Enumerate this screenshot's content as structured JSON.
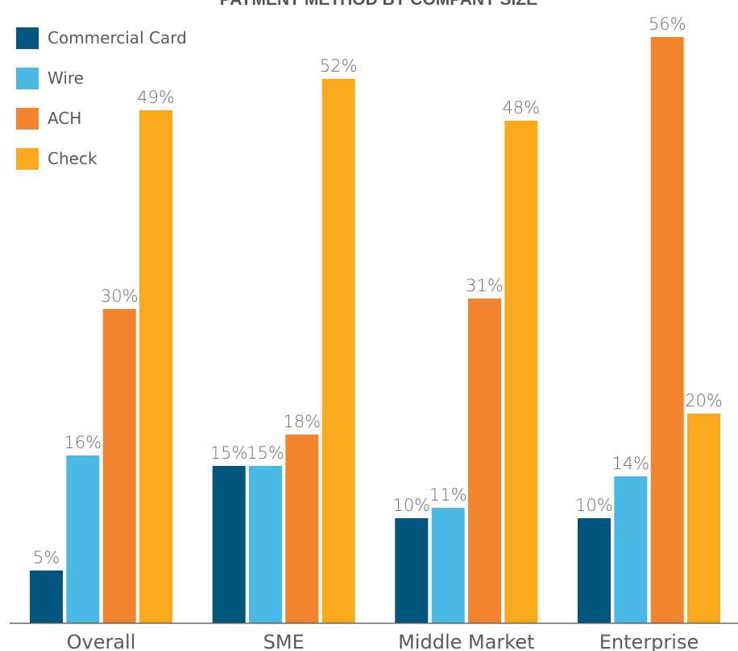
{
  "chart_data": {
    "type": "bar",
    "title": "PAYMENT METHOD BY COMPANY SIZE",
    "categories": [
      "Overall",
      "SME",
      "Middle Market",
      "Enterprise"
    ],
    "series": [
      {
        "name": "Commercial Card",
        "color": "#00567d",
        "values": [
          5,
          15,
          10,
          10
        ],
        "labels": [
          "5%",
          "15%",
          "10%",
          "10%"
        ]
      },
      {
        "name": "Wire",
        "color": "#4ab9e3",
        "values": [
          16,
          15,
          11,
          14
        ],
        "labels": [
          "16%",
          "15%",
          "11%",
          "14%"
        ]
      },
      {
        "name": "ACH",
        "color": "#f1842d",
        "values": [
          30,
          18,
          31,
          56
        ],
        "labels": [
          "30%",
          "18%",
          "31%",
          "56%"
        ]
      },
      {
        "name": "Check",
        "color": "#f9a91b",
        "values": [
          49,
          52,
          48,
          20
        ],
        "labels": [
          "49%",
          "52%",
          "48%",
          "20%"
        ]
      }
    ],
    "ylim": [
      0,
      56
    ],
    "grid": false,
    "legend": "top-left"
  }
}
